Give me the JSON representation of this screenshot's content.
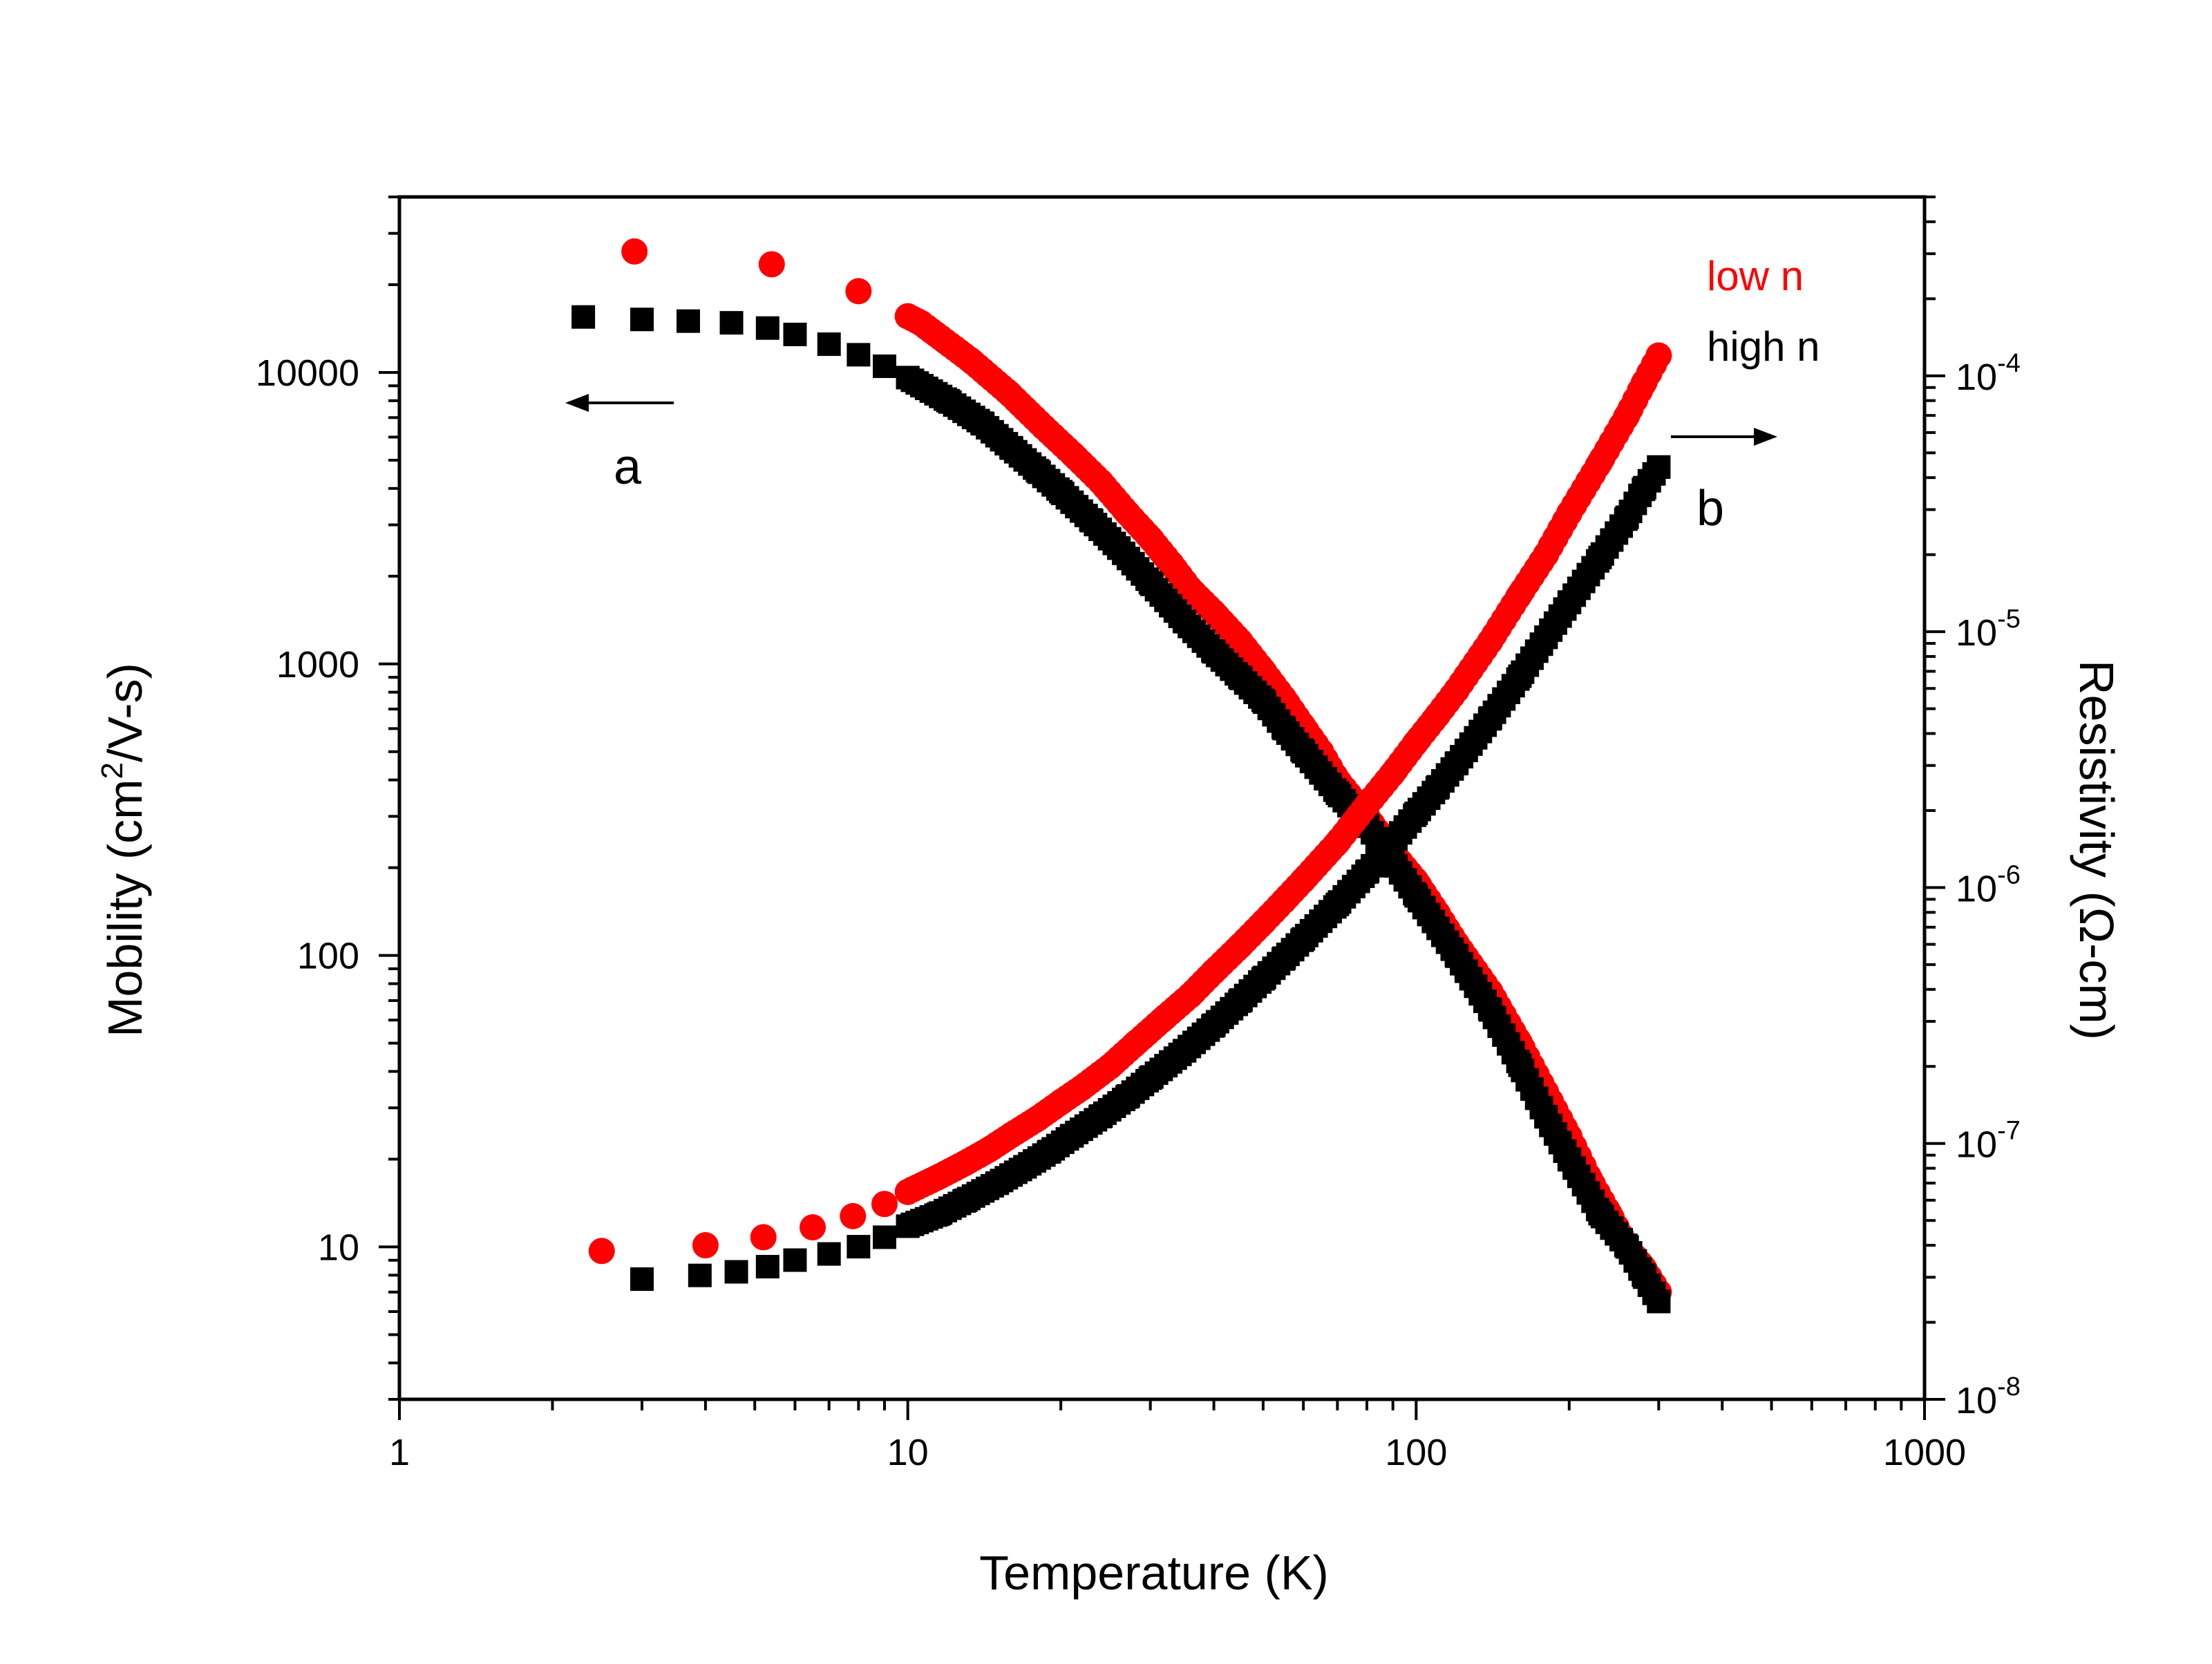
{
  "chart_data": {
    "type": "scatter",
    "title": "",
    "xlabel": "Temperature (K)",
    "ylabel_left": "Mobility (cm²/V-s)",
    "ylabel_left_parts": [
      "Mobility (cm",
      "2",
      "/V-s)"
    ],
    "ylabel_right": "Resistivity (Ω-cm)",
    "xscale": "log",
    "yscale_left": "log",
    "yscale_right": "log",
    "xlim": [
      1,
      1000
    ],
    "ylim_left": [
      3,
      40000
    ],
    "ylim_right": [
      1e-08,
      0.0005
    ],
    "x_tick_labels": [
      "1",
      "10",
      "100",
      "1000"
    ],
    "x_tick_values": [
      1,
      10,
      100,
      1000
    ],
    "left_tick_labels": [
      "10",
      "100",
      "1000",
      "10000"
    ],
    "left_tick_values": [
      10,
      100,
      1000,
      10000
    ],
    "right_tick_labels": [
      {
        "base": "10",
        "exp": "-8",
        "value": 1e-08
      },
      {
        "base": "10",
        "exp": "-7",
        "value": 1e-07
      },
      {
        "base": "10",
        "exp": "-6",
        "value": 1e-06
      },
      {
        "base": "10",
        "exp": "-5",
        "value": 1e-05
      },
      {
        "base": "10",
        "exp": "-4",
        "value": 0.0001
      }
    ],
    "legend": [
      {
        "label": "low n",
        "color": "#ff0000"
      },
      {
        "label": "high n",
        "color": "#000000"
      }
    ],
    "annotations": [
      {
        "text": "a",
        "meaning": "arrow points to left axis (mobility)"
      },
      {
        "text": "b",
        "meaning": "arrow points to right axis (resistivity)"
      }
    ],
    "series": [
      {
        "name": "low n mobility",
        "axis": "left",
        "color": "#ff0000",
        "marker": "circle",
        "x": [
          2.9,
          5.4,
          8.0,
          10.6,
          13.3,
          15.8,
          18.5,
          21.2,
          24,
          27,
          30,
          33,
          36,
          40,
          45,
          50,
          55,
          60,
          65,
          70,
          80,
          90,
          100,
          110,
          120,
          140,
          160,
          180,
          200,
          220,
          240,
          260,
          280,
          300
        ],
        "y": [
          26000,
          23500,
          19000,
          14800,
          11000,
          8500,
          6500,
          5200,
          4200,
          3300,
          2700,
          2200,
          1800,
          1500,
          1200,
          950,
          760,
          610,
          500,
          400,
          300,
          225,
          180,
          140,
          110,
          75,
          50,
          34,
          24,
          17,
          13,
          10,
          8.5,
          7
        ]
      },
      {
        "name": "high n mobility",
        "axis": "left",
        "color": "#000000",
        "marker": "square",
        "x": [
          2.3,
          3.0,
          3.7,
          4.5,
          5.3,
          6.0,
          7.0,
          8.0,
          9.0,
          10,
          12,
          14,
          16,
          18,
          20,
          23,
          26,
          30,
          35,
          40,
          45,
          50,
          55,
          60,
          70,
          80,
          90,
          100,
          120,
          140,
          160,
          180,
          200,
          230,
          260,
          280,
          300
        ],
        "y": [
          15500,
          15200,
          15000,
          14800,
          14200,
          13500,
          12500,
          11500,
          10500,
          9600,
          8000,
          6700,
          5500,
          4600,
          3900,
          3100,
          2500,
          1900,
          1400,
          1100,
          900,
          750,
          600,
          500,
          360,
          280,
          210,
          160,
          100,
          65,
          42,
          28,
          20,
          13,
          10,
          8,
          6.5
        ]
      },
      {
        "name": "low n resistivity",
        "axis": "right",
        "color": "#ff0000",
        "marker": "circle",
        "x": [
          2.5,
          4.0,
          5.2,
          6.5,
          7.8,
          9.0,
          10.2,
          11.5,
          13,
          14.5,
          16,
          18,
          20,
          22,
          25,
          28,
          32,
          36,
          40,
          45,
          50,
          55,
          60,
          70,
          80,
          90,
          100,
          110,
          120,
          140,
          160,
          180,
          200,
          230,
          260,
          280,
          300
        ],
        "y": [
          3.8e-08,
          4e-08,
          4.3e-08,
          4.7e-08,
          5.2e-08,
          5.8e-08,
          6.6e-08,
          7.4e-08,
          8.4e-08,
          9.5e-08,
          1.08e-07,
          1.25e-07,
          1.45e-07,
          1.65e-07,
          2e-07,
          2.45e-07,
          3.1e-07,
          3.8e-07,
          4.7e-07,
          5.9e-07,
          7.3e-07,
          8.9e-07,
          1.07e-06,
          1.5e-06,
          2.1e-06,
          2.8e-06,
          3.7e-06,
          4.7e-06,
          5.9e-06,
          9.2e-06,
          1.4e-05,
          2e-05,
          2.9e-05,
          4.6e-05,
          7e-05,
          9.3e-05,
          0.00012
        ]
      },
      {
        "name": "high n resistivity",
        "axis": "right",
        "color": "#000000",
        "marker": "square",
        "x": [
          3.0,
          3.9,
          4.6,
          5.3,
          6.0,
          7.0,
          8.0,
          9.0,
          10,
          11.5,
          13,
          15,
          17,
          19,
          21,
          24,
          27,
          30,
          35,
          40,
          45,
          50,
          55,
          60,
          70,
          80,
          90,
          100,
          110,
          120,
          140,
          160,
          180,
          200,
          230,
          260,
          280,
          300
        ],
        "y": [
          2.95e-08,
          3.05e-08,
          3.15e-08,
          3.3e-08,
          3.5e-08,
          3.7e-08,
          3.95e-08,
          4.3e-08,
          4.75e-08,
          5.3e-08,
          6e-08,
          7e-08,
          8.1e-08,
          9.3e-08,
          1.07e-07,
          1.28e-07,
          1.52e-07,
          1.8e-07,
          2.3e-07,
          2.9e-07,
          3.6e-07,
          4.4e-07,
          5.3e-07,
          6.3e-07,
          8.6e-07,
          1.15e-06,
          1.5e-06,
          1.95e-06,
          2.45e-06,
          3.05e-06,
          4.6e-06,
          6.7e-06,
          9.5e-06,
          1.3e-05,
          1.95e-05,
          2.8e-05,
          3.6e-05,
          4.4e-05
        ]
      }
    ]
  }
}
